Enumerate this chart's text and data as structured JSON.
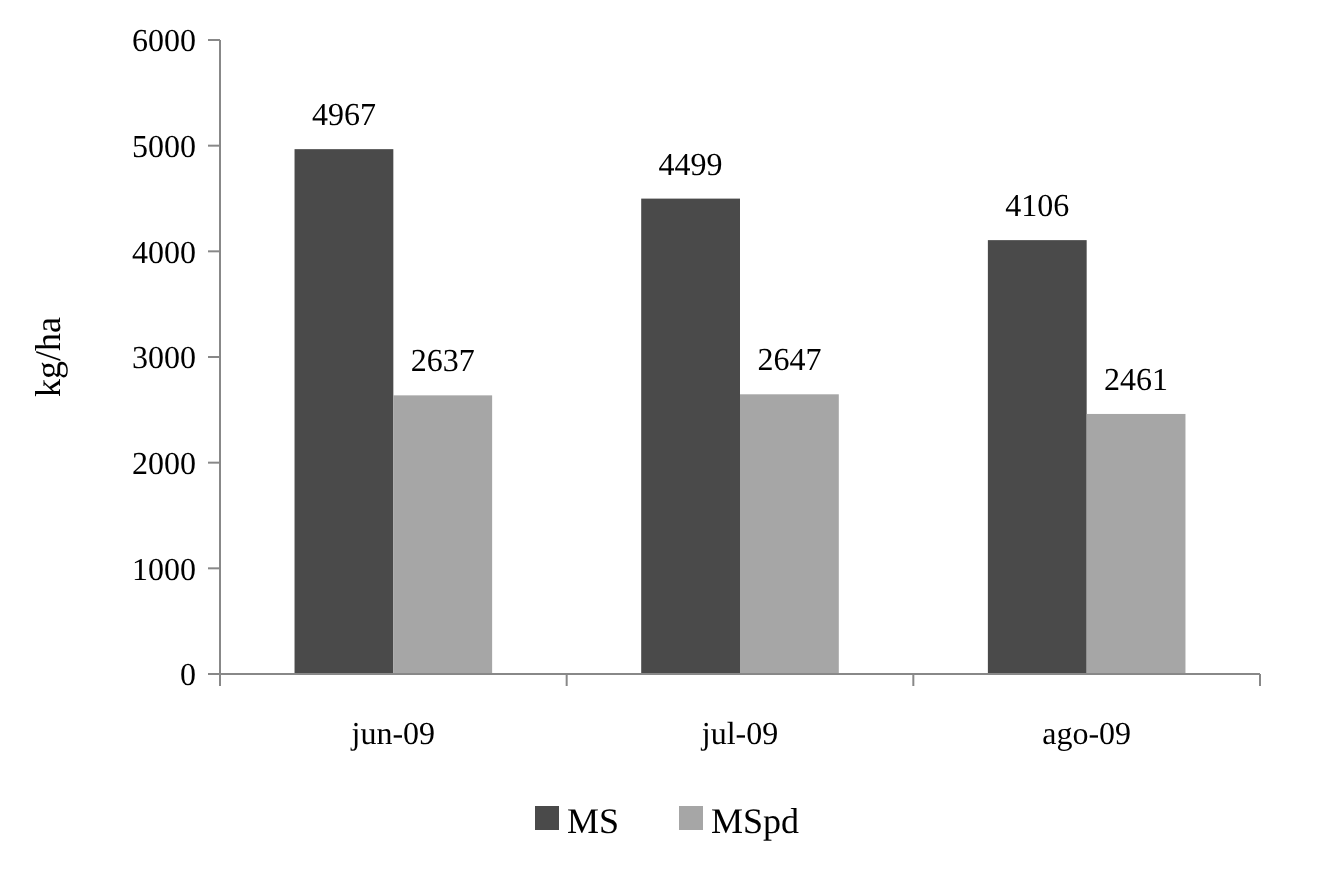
{
  "chart_data": {
    "type": "bar",
    "ylabel": "kg/ha",
    "categories": [
      "jun-09",
      "jul-09",
      "ago-09"
    ],
    "series": [
      {
        "name": "MS",
        "color": "#4a4a4a",
        "values": [
          4967,
          4499,
          4106
        ]
      },
      {
        "name": "MSpd",
        "color": "#a6a6a6",
        "values": [
          2637,
          2647,
          2461
        ]
      }
    ],
    "ylim": [
      0,
      6000
    ],
    "yticks": [
      0,
      1000,
      2000,
      3000,
      4000,
      5000,
      6000
    ],
    "data_labels": true,
    "legend": "bottom",
    "grid": false
  }
}
